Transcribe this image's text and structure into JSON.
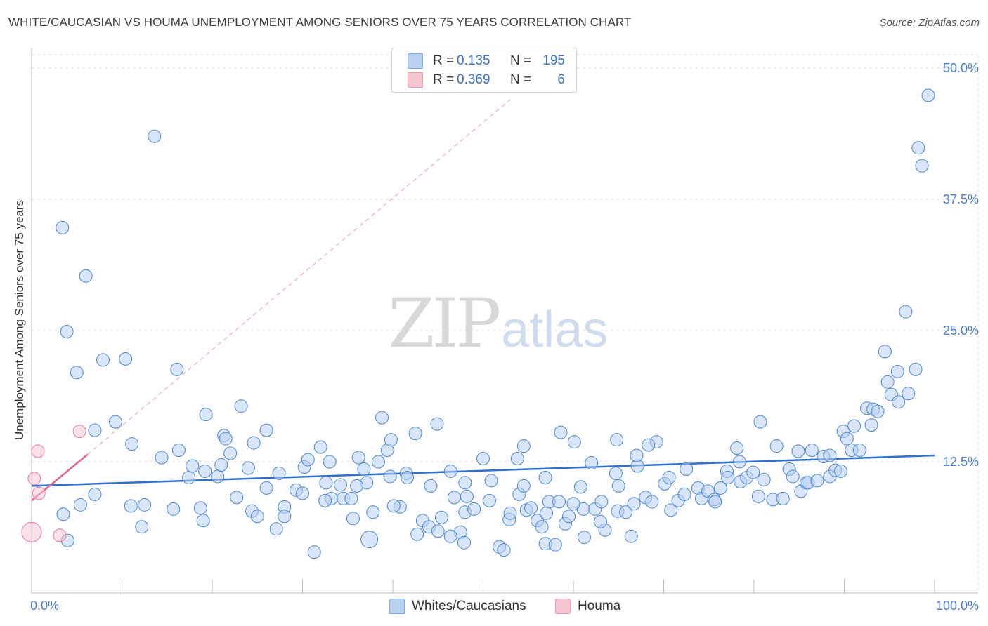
{
  "title": "WHITE/CAUCASIAN VS HOUMA UNEMPLOYMENT AMONG SENIORS OVER 75 YEARS CORRELATION CHART",
  "source": "Source: ZipAtlas.com",
  "watermark": {
    "zip": "ZIP",
    "atlas": "atlas"
  },
  "legend": {
    "rows": [
      {
        "r_label": "R =",
        "r_value": "0.135",
        "n_label": "N =",
        "n_value": "195",
        "color": "#7aa7e6",
        "fill": "#b9d0f3"
      },
      {
        "r_label": "R =",
        "r_value": "0.369",
        "n_label": "N =",
        "n_value": "6",
        "color": "#ee9ab0",
        "fill": "#f7c6d3"
      }
    ]
  },
  "bottom_legend": [
    {
      "label": "Whites/Caucasians",
      "color": "#7aa7e6",
      "fill": "#b9d0f3"
    },
    {
      "label": "Houma",
      "color": "#ee9ab0",
      "fill": "#f7c6d3"
    }
  ],
  "chart_data": {
    "type": "scatter",
    "title": "WHITE/CAUCASIAN VS HOUMA UNEMPLOYMENT AMONG SENIORS OVER 75 YEARS CORRELATION CHART",
    "xlabel": "",
    "ylabel": "Unemployment Among Seniors over 75 years",
    "xlim": [
      0,
      100
    ],
    "ylim": [
      0,
      50
    ],
    "x_tick_labels": [
      "0.0%",
      "100.0%"
    ],
    "y_ticks": [
      12.5,
      25.0,
      37.5,
      50.0
    ],
    "y_tick_labels": [
      "12.5%",
      "25.0%",
      "37.5%",
      "50.0%"
    ],
    "grid": true,
    "series": [
      {
        "name": "Whites/Caucasians",
        "color": "#4a86d8",
        "fill": "#b9d0f3",
        "trend": {
          "x": [
            0,
            100
          ],
          "y": [
            10.2,
            13.1
          ],
          "style": "solid",
          "color": "#2f6fd0"
        },
        "points": [
          [
            13.6,
            43.5
          ],
          [
            3.4,
            34.8
          ],
          [
            6.0,
            30.2
          ],
          [
            3.9,
            24.9
          ],
          [
            5.0,
            21.0
          ],
          [
            7.9,
            22.2
          ],
          [
            10.4,
            22.3
          ],
          [
            16.1,
            21.3
          ],
          [
            7.0,
            15.5
          ],
          [
            9.3,
            16.3
          ],
          [
            11.1,
            14.2
          ],
          [
            14.4,
            12.9
          ],
          [
            16.3,
            13.6
          ],
          [
            3.5,
            7.5
          ],
          [
            4.0,
            5.0
          ],
          [
            5.4,
            8.4
          ],
          [
            7.0,
            9.4
          ],
          [
            11.0,
            8.3
          ],
          [
            12.5,
            8.4
          ],
          [
            12.2,
            6.3
          ],
          [
            15.7,
            8.0
          ],
          [
            17.4,
            11.0
          ],
          [
            17.8,
            12.1
          ],
          [
            18.7,
            8.1
          ],
          [
            19.2,
            11.6
          ],
          [
            19.3,
            17.0
          ],
          [
            20.6,
            11.1
          ],
          [
            21.0,
            12.2
          ],
          [
            21.3,
            15.0
          ],
          [
            22.7,
            9.1
          ],
          [
            23.2,
            17.8
          ],
          [
            24.0,
            11.9
          ],
          [
            24.4,
            7.8
          ],
          [
            24.6,
            14.3
          ],
          [
            26.0,
            10.0
          ],
          [
            26.0,
            15.5
          ],
          [
            27.1,
            6.1
          ],
          [
            27.4,
            11.4
          ],
          [
            28.0,
            8.2
          ],
          [
            28.0,
            7.3
          ],
          [
            29.3,
            9.8
          ],
          [
            30.2,
            12.0
          ],
          [
            30.6,
            12.7
          ],
          [
            31.3,
            3.9
          ],
          [
            32.0,
            13.9
          ],
          [
            32.6,
            10.5
          ],
          [
            33.2,
            9.0
          ],
          [
            34.2,
            10.3
          ],
          [
            34.5,
            9.0
          ],
          [
            35.4,
            9.0
          ],
          [
            35.6,
            7.1
          ],
          [
            36.2,
            12.9
          ],
          [
            36.8,
            11.8
          ],
          [
            37.1,
            10.5
          ],
          [
            37.8,
            7.7
          ],
          [
            38.4,
            12.5
          ],
          [
            38.8,
            16.7
          ],
          [
            39.4,
            13.6
          ],
          [
            39.7,
            11.1
          ],
          [
            40.8,
            8.2
          ],
          [
            41.5,
            11.4
          ],
          [
            40.1,
            8.3
          ],
          [
            41.6,
            11.0
          ],
          [
            42.5,
            15.2
          ],
          [
            43.3,
            6.9
          ],
          [
            44.0,
            6.3
          ],
          [
            44.2,
            10.2
          ],
          [
            45.0,
            5.9
          ],
          [
            45.4,
            7.2
          ],
          [
            42.7,
            5.6
          ],
          [
            46.4,
            11.6
          ],
          [
            47.5,
            5.8
          ],
          [
            46.8,
            9.1
          ],
          [
            48.0,
            10.5
          ],
          [
            48.2,
            9.2
          ],
          [
            48.0,
            7.7
          ],
          [
            47.9,
            4.8
          ],
          [
            49.0,
            8.0
          ],
          [
            50.0,
            12.8
          ],
          [
            50.7,
            8.8
          ],
          [
            50.9,
            10.7
          ],
          [
            52.9,
            7.0
          ],
          [
            51.8,
            4.4
          ],
          [
            52.3,
            4.1
          ],
          [
            53.0,
            7.6
          ],
          [
            54.0,
            9.4
          ],
          [
            54.8,
            7.9
          ],
          [
            54.5,
            10.2
          ],
          [
            56.0,
            6.9
          ],
          [
            55.3,
            8.1
          ],
          [
            56.9,
            11.0
          ],
          [
            57.3,
            8.7
          ],
          [
            56.9,
            4.7
          ],
          [
            56.5,
            6.3
          ],
          [
            57.0,
            7.6
          ],
          [
            58.4,
            8.7
          ],
          [
            58.6,
            15.3
          ],
          [
            59.1,
            6.6
          ],
          [
            59.5,
            7.3
          ],
          [
            60.1,
            14.4
          ],
          [
            60.8,
            10.1
          ],
          [
            61.1,
            8.0
          ],
          [
            61.2,
            5.3
          ],
          [
            62.0,
            12.4
          ],
          [
            62.4,
            8.0
          ],
          [
            63.1,
            8.7
          ],
          [
            63.5,
            6.0
          ],
          [
            63.0,
            6.8
          ],
          [
            64.7,
            11.4
          ],
          [
            65.0,
            10.2
          ],
          [
            64.9,
            7.8
          ],
          [
            65.8,
            7.7
          ],
          [
            66.4,
            5.4
          ],
          [
            66.7,
            8.5
          ],
          [
            67.1,
            12.1
          ],
          [
            68.0,
            9.1
          ],
          [
            67.0,
            13.1
          ],
          [
            68.7,
            8.7
          ],
          [
            69.2,
            14.4
          ],
          [
            70.1,
            10.4
          ],
          [
            70.6,
            11.0
          ],
          [
            70.8,
            7.9
          ],
          [
            71.6,
            8.8
          ],
          [
            72.3,
            9.4
          ],
          [
            72.5,
            11.8
          ],
          [
            73.8,
            10.0
          ],
          [
            74.2,
            9.0
          ],
          [
            74.9,
            9.7
          ],
          [
            75.6,
            8.9
          ],
          [
            75.7,
            8.7
          ],
          [
            76.3,
            10.0
          ],
          [
            77.0,
            11.6
          ],
          [
            77.1,
            11.0
          ],
          [
            78.1,
            13.8
          ],
          [
            78.5,
            10.6
          ],
          [
            78.4,
            12.5
          ],
          [
            79.2,
            11.0
          ],
          [
            79.9,
            11.5
          ],
          [
            80.7,
            16.3
          ],
          [
            80.5,
            9.2
          ],
          [
            81.1,
            10.8
          ],
          [
            82.1,
            8.9
          ],
          [
            82.5,
            14.0
          ],
          [
            83.2,
            9.0
          ],
          [
            83.9,
            11.8
          ],
          [
            84.3,
            11.1
          ],
          [
            84.9,
            13.5
          ],
          [
            85.2,
            9.7
          ],
          [
            85.8,
            10.5
          ],
          [
            86.0,
            10.5
          ],
          [
            86.4,
            13.6
          ],
          [
            87.0,
            10.7
          ],
          [
            87.7,
            13.0
          ],
          [
            88.4,
            11.1
          ],
          [
            88.4,
            13.1
          ],
          [
            89.0,
            11.7
          ],
          [
            89.6,
            11.6
          ],
          [
            89.9,
            15.4
          ],
          [
            90.3,
            14.7
          ],
          [
            90.8,
            13.6
          ],
          [
            91.1,
            15.9
          ],
          [
            91.7,
            13.6
          ],
          [
            92.5,
            17.6
          ],
          [
            93.0,
            16.0
          ],
          [
            93.2,
            17.5
          ],
          [
            93.7,
            17.3
          ],
          [
            94.5,
            23.0
          ],
          [
            94.8,
            20.1
          ],
          [
            95.2,
            18.9
          ],
          [
            95.9,
            21.1
          ],
          [
            96.0,
            18.2
          ],
          [
            96.8,
            26.8
          ],
          [
            97.1,
            19.0
          ],
          [
            97.9,
            21.3
          ],
          [
            98.2,
            42.4
          ],
          [
            98.6,
            40.7
          ],
          [
            99.3,
            47.4
          ],
          [
            37.4,
            5.1
          ],
          [
            46.4,
            5.4
          ],
          [
            30.0,
            9.5
          ],
          [
            22.0,
            13.3
          ],
          [
            25.0,
            7.3
          ],
          [
            33.0,
            12.5
          ],
          [
            53.8,
            12.8
          ],
          [
            60.0,
            8.5
          ],
          [
            44.9,
            16.1
          ],
          [
            32.5,
            8.8
          ],
          [
            21.5,
            14.7
          ],
          [
            19.0,
            6.9
          ],
          [
            58.0,
            4.6
          ],
          [
            54.5,
            14.0
          ],
          [
            68.3,
            14.1
          ],
          [
            36.0,
            10.2
          ],
          [
            39.8,
            14.6
          ],
          [
            64.8,
            14.6
          ]
        ]
      },
      {
        "name": "Houma",
        "color": "#e8799a",
        "fill": "#f7c6d3",
        "trend": {
          "x": [
            0,
            6.2
          ],
          "y": [
            8.8,
            13.2
          ],
          "style": "solid",
          "color": "#e0668c",
          "extension": {
            "x": [
              6.2,
              53.0
            ],
            "y": [
              13.2,
              47.0
            ],
            "style": "dashed"
          }
        },
        "points": [
          [
            0.0,
            5.8
          ],
          [
            0.3,
            10.9
          ],
          [
            0.7,
            13.5
          ],
          [
            0.8,
            9.5
          ],
          [
            3.1,
            5.5
          ],
          [
            5.3,
            15.4
          ]
        ]
      }
    ]
  }
}
